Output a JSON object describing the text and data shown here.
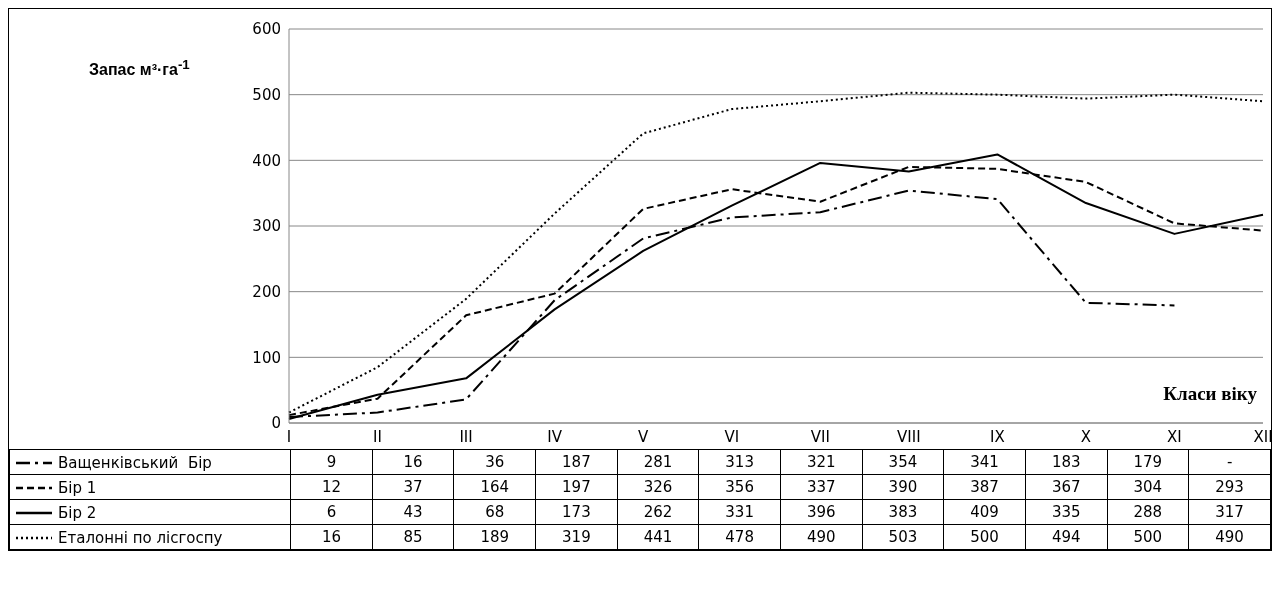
{
  "chart_data": {
    "type": "line",
    "ylabel": "Запас м³·га$^{-1}$",
    "xlabel": "Класи віку",
    "categories": [
      "I",
      "II",
      "III",
      "IV",
      "V",
      "VI",
      "VII",
      "VIII",
      "IX",
      "X",
      "XI",
      "XII"
    ],
    "ylim": [
      0,
      600
    ],
    "yticks": [
      0,
      100,
      200,
      300,
      400,
      500,
      600
    ],
    "grid": "y",
    "legend": "bottom",
    "marker": "none",
    "series": [
      {
        "name": "Ващенківський  Бір",
        "color": "#000000",
        "line_style": "dashdot",
        "values": [
          9,
          16,
          36,
          187,
          281,
          313,
          321,
          354,
          341,
          183,
          179,
          null
        ],
        "value_labels": [
          "9",
          "16",
          "36",
          "187",
          "281",
          "313",
          "321",
          "354",
          "341",
          "183",
          "179",
          "-"
        ]
      },
      {
        "name": "Бір 1",
        "color": "#000000",
        "line_style": "dashed",
        "values": [
          12,
          37,
          164,
          197,
          326,
          356,
          337,
          390,
          387,
          367,
          304,
          293
        ],
        "value_labels": [
          "12",
          "37",
          "164",
          "197",
          "326",
          "356",
          "337",
          "390",
          "387",
          "367",
          "304",
          "293"
        ]
      },
      {
        "name": "Бір 2",
        "color": "#000000",
        "line_style": "solid",
        "values": [
          6,
          43,
          68,
          173,
          262,
          331,
          396,
          383,
          409,
          335,
          288,
          317
        ],
        "value_labels": [
          "6",
          "43",
          "68",
          "173",
          "262",
          "331",
          "396",
          "383",
          "409",
          "335",
          "288",
          "317"
        ]
      },
      {
        "name": "Еталонні по лісгоспу",
        "color": "#000000",
        "line_style": "dotted",
        "values": [
          16,
          85,
          189,
          319,
          441,
          478,
          490,
          503,
          500,
          494,
          500,
          490
        ],
        "value_labels": [
          "16",
          "85",
          "189",
          "319",
          "441",
          "478",
          "490",
          "503",
          "500",
          "494",
          "500",
          "490"
        ]
      }
    ]
  }
}
